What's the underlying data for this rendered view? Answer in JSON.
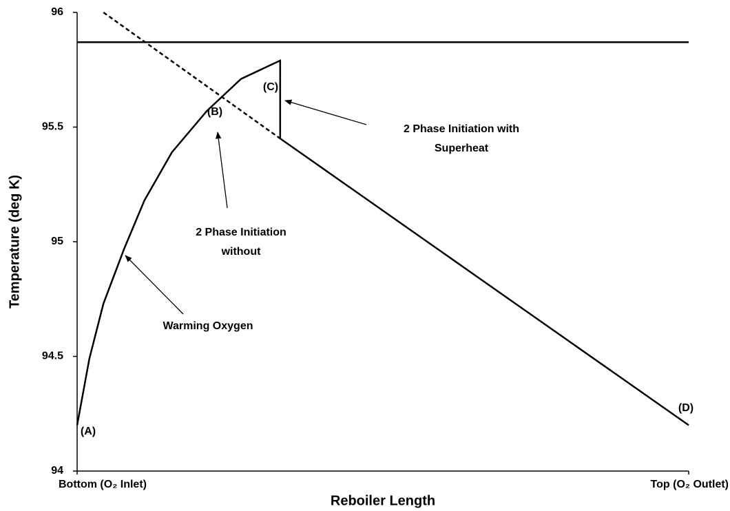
{
  "chart_data": {
    "type": "line",
    "x_label": "Reboiler Length",
    "y_label": "Temperature (deg K)",
    "xlim": [
      0,
      1
    ],
    "xticks": [
      {
        "value": 0,
        "label": "Bottom (O₂ Inlet)"
      },
      {
        "value": 1,
        "label": "Top (O₂ Outlet)"
      }
    ],
    "ylim": [
      94,
      96
    ],
    "yticks": [
      94,
      94.5,
      95,
      95.5,
      96
    ],
    "series": [
      {
        "color": "#000000",
        "dash": false,
        "x": [
          0,
          1
        ],
        "values": [
          95.87,
          95.87
        ]
      },
      {
        "color": "#000000",
        "dash": true,
        "x": [
          0.043,
          0.332
        ],
        "values": [
          96,
          95.45
        ]
      },
      {
        "color": "#000000",
        "dash": false,
        "x": [
          0,
          0.02,
          0.043,
          0.077,
          0.11,
          0.155,
          0.212,
          0.268,
          0.332,
          0.332,
          1
        ],
        "values": [
          94.2,
          94.49,
          94.73,
          94.97,
          95.18,
          95.39,
          95.57,
          95.71,
          95.79,
          95.45,
          94.2
        ]
      }
    ],
    "annotations": [
      {
        "lines": [
          "(A)"
        ]
      },
      {
        "lines": [
          "(B)"
        ]
      },
      {
        "lines": [
          "(C)"
        ]
      },
      {
        "lines": [
          "(D)"
        ]
      },
      {
        "lines": [
          "2 Phase Initiation with",
          "Superheat"
        ]
      },
      {
        "lines": [
          "2 Phase Initiation",
          "without"
        ]
      },
      {
        "lines": [
          "Warming Oxygen"
        ]
      }
    ]
  }
}
